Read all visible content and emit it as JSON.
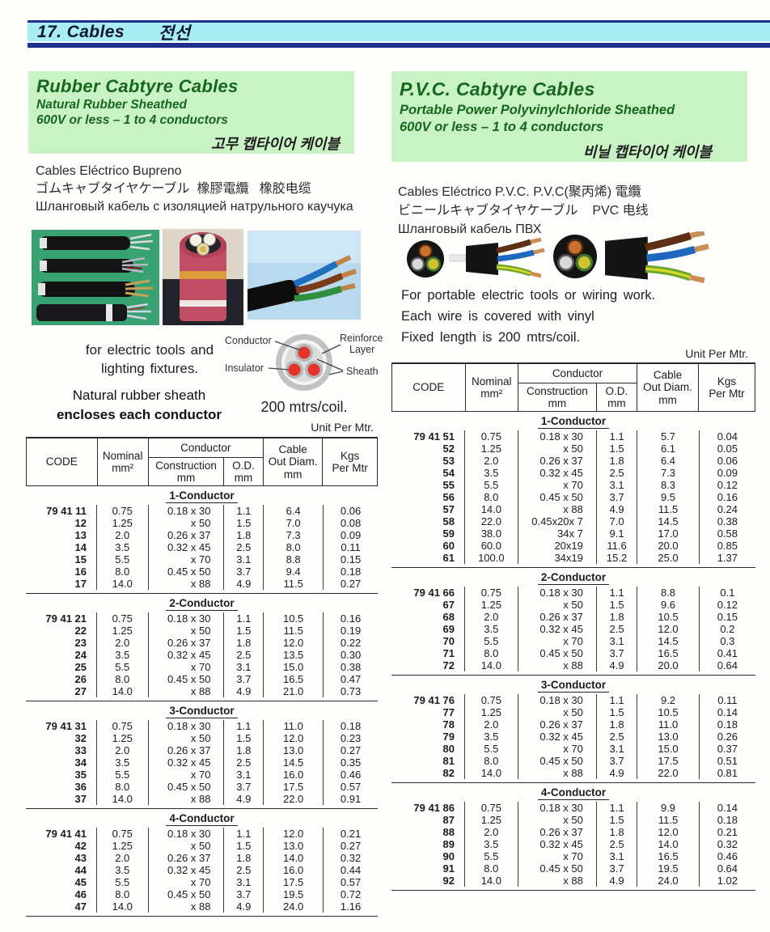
{
  "header": {
    "title_en": "17. Cables",
    "title_kr": "전선"
  },
  "colors": {
    "header_bar": "#a7edf3",
    "header_line": "#1e3090",
    "title_box_bg": "#c9f2c5",
    "title_text_green": "#17661f"
  },
  "left": {
    "title": "Rubber Cabtyre Cables",
    "subtitle1": "Natural Rubber Sheathed",
    "subtitle2": "600V or less – 1 to 4 conductors",
    "title_kr": "고무 캡타이어 케이블",
    "alt_names": [
      "Cables Eléctrico Bupreno",
      "ゴムキャブタイヤケーブル  橡膠電纜   橡胶电缆",
      "Шланговый кабель с изоляцией натрульного каучука"
    ],
    "images": [
      "rubber-cable-samples-photo",
      "rubber-cable-cross-section-photo",
      "rubber-cable-stripped-photo"
    ],
    "usage_note_line1": "for electric tools and",
    "usage_note_line2": "lighting fixtures.",
    "sheath_note_line1": "Natural rubber sheath",
    "sheath_note_line2": "encloses each conductor",
    "diagram": {
      "label_conductor": "Conductor",
      "label_insulator": "Insulator",
      "label_reinforce_line1": "Reinforce",
      "label_reinforce_line2": "Layer",
      "label_sheath": "Sheath",
      "caption": "200 mtrs/coil."
    },
    "unit_note": "Unit Per Mtr.",
    "table": {
      "headers": {
        "code": "CODE",
        "nominal": "Nominal\nmm²",
        "conductor": "Conductor",
        "construction": "Construction\nmm",
        "od": "O.D.\nmm",
        "cable_out_diam": "Cable\nOut Diam.\nmm",
        "kgs": "Kgs\nPer Mtr"
      },
      "sections": [
        {
          "name": "1-Conductor",
          "rows": [
            [
              "79 41 11",
              "0.75",
              "0.18 x 30",
              "1.1",
              "6.4",
              "0.06"
            ],
            [
              "12",
              "1.25",
              "x 50",
              "1.5",
              "7.0",
              "0.08"
            ],
            [
              "13",
              "2.0",
              "0.26 x 37",
              "1.8",
              "7.3",
              "0.09"
            ],
            [
              "14",
              "3.5",
              "0.32 x 45",
              "2.5",
              "8.0",
              "0.11"
            ],
            [
              "15",
              "5.5",
              "x 70",
              "3.1",
              "8.8",
              "0.15"
            ],
            [
              "16",
              "8.0",
              "0.45 x 50",
              "3.7",
              "9.4",
              "0.18"
            ],
            [
              "17",
              "14.0",
              "x 88",
              "4.9",
              "11.5",
              "0.27"
            ]
          ]
        },
        {
          "name": "2-Conductor",
          "rows": [
            [
              "79 41 21",
              "0.75",
              "0.18 x 30",
              "1.1",
              "10.5",
              "0.16"
            ],
            [
              "22",
              "1.25",
              "x 50",
              "1.5",
              "11.5",
              "0.19"
            ],
            [
              "23",
              "2.0",
              "0.26 x 37",
              "1.8",
              "12.0",
              "0.22"
            ],
            [
              "24",
              "3.5",
              "0.32 x 45",
              "2.5",
              "13.5",
              "0.30"
            ],
            [
              "25",
              "5.5",
              "x 70",
              "3.1",
              "15.0",
              "0.38"
            ],
            [
              "26",
              "8.0",
              "0.45 x 50",
              "3.7",
              "16.5",
              "0.47"
            ],
            [
              "27",
              "14.0",
              "x 88",
              "4.9",
              "21.0",
              "0.73"
            ]
          ]
        },
        {
          "name": "3-Conductor",
          "rows": [
            [
              "79 41 31",
              "0.75",
              "0.18 x 30",
              "1.1",
              "11.0",
              "0.18"
            ],
            [
              "32",
              "1.25",
              "x 50",
              "1.5",
              "12.0",
              "0.23"
            ],
            [
              "33",
              "2.0",
              "0.26 x 37",
              "1.8",
              "13.0",
              "0.27"
            ],
            [
              "34",
              "3.5",
              "0.32 x 45",
              "2.5",
              "14.5",
              "0.35"
            ],
            [
              "35",
              "5.5",
              "x 70",
              "3.1",
              "16.0",
              "0.46"
            ],
            [
              "36",
              "8.0",
              "0.45 x 50",
              "3.7",
              "17.5",
              "0.57"
            ],
            [
              "37",
              "14.0",
              "x 88",
              "4.9",
              "22.0",
              "0.91"
            ]
          ]
        },
        {
          "name": "4-Conductor",
          "rows": [
            [
              "79 41 41",
              "0.75",
              "0.18 x 30",
              "1.1",
              "12.0",
              "0.21"
            ],
            [
              "42",
              "1.25",
              "x 50",
              "1.5",
              "13.0",
              "0.27"
            ],
            [
              "43",
              "2.0",
              "0.26 x 37",
              "1.8",
              "14.0",
              "0.32"
            ],
            [
              "44",
              "3.5",
              "0.32 x 45",
              "2.5",
              "16.0",
              "0.44"
            ],
            [
              "45",
              "5.5",
              "x 70",
              "3.1",
              "17.5",
              "0.57"
            ],
            [
              "46",
              "8.0",
              "0.45 x 50",
              "3.7",
              "19.5",
              "0.72"
            ],
            [
              "47",
              "14.0",
              "x 88",
              "4.9",
              "24.0",
              "1.16"
            ]
          ]
        }
      ]
    }
  },
  "right": {
    "title": "P.V.C. Cabtyre Cables",
    "subtitle1": "Portable Power Polyvinylchloride Sheathed",
    "subtitle2": "600V or less – 1 to 4 conductors",
    "title_kr": "비닐 캡타이어 케이블",
    "alt_names": [
      "Cables Eléctrico P.V.C. P.V.C(聚丙烯) 電纜",
      "ビニールキャブタイヤケーブル    PVC 电线",
      "Шланговый кабель ПВХ"
    ],
    "images": [
      "pvc-cable-group-photo-small",
      "pvc-cable-group-photo-large"
    ],
    "usage_notes": [
      "For portable electric tools or wiring  work.",
      "Each  wire  is  covered  with  vinyl",
      "Fixed length is 200 mtrs/coil."
    ],
    "unit_note": "Unit Per Mtr.",
    "table": {
      "headers": {
        "code": "CODE",
        "nominal": "Nominal\nmm²",
        "conductor": "Conductor",
        "construction": "Construction\nmm",
        "od": "O.D.\nmm",
        "cable_out_diam": "Cable\nOut Diam.\nmm",
        "kgs": "Kgs\nPer Mtr"
      },
      "sections": [
        {
          "name": "1-Conductor",
          "rows": [
            [
              "79 41 51",
              "0.75",
              "0.18 x 30",
              "1.1",
              "5.7",
              "0.04"
            ],
            [
              "52",
              "1.25",
              "x 50",
              "1.5",
              "6.1",
              "0.05"
            ],
            [
              "53",
              "2.0",
              "0.26 x 37",
              "1.8",
              "6.4",
              "0.06"
            ],
            [
              "54",
              "3.5",
              "0.32 x 45",
              "2.5",
              "7.3",
              "0.09"
            ],
            [
              "55",
              "5.5",
              "x 70",
              "3.1",
              "8.3",
              "0.12"
            ],
            [
              "56",
              "8.0",
              "0.45 x 50",
              "3.7",
              "9.5",
              "0.16"
            ],
            [
              "57",
              "14.0",
              "x 88",
              "4.9",
              "11.5",
              "0.24"
            ],
            [
              "58",
              "22.0",
              "0.45x20x 7",
              "7.0",
              "14.5",
              "0.38"
            ],
            [
              "59",
              "38.0",
              "34x 7",
              "9.1",
              "17.0",
              "0.58"
            ],
            [
              "60",
              "60.0",
              "20x19",
              "11.6",
              "20.0",
              "0.85"
            ],
            [
              "61",
              "100.0",
              "34x19",
              "15.2",
              "25.0",
              "1.37"
            ]
          ]
        },
        {
          "name": "2-Conductor",
          "rows": [
            [
              "79 41 66",
              "0.75",
              "0.18 x 30",
              "1.1",
              "8.8",
              "0.1"
            ],
            [
              "67",
              "1.25",
              "x 50",
              "1.5",
              "9.6",
              "0.12"
            ],
            [
              "68",
              "2.0",
              "0.26 x 37",
              "1.8",
              "10.5",
              "0.15"
            ],
            [
              "69",
              "3.5",
              "0.32 x 45",
              "2.5",
              "12.0",
              "0.2"
            ],
            [
              "70",
              "5.5",
              "x 70",
              "3.1",
              "14.5",
              "0.3"
            ],
            [
              "71",
              "8.0",
              "0.45 x 50",
              "3.7",
              "16.5",
              "0.41"
            ],
            [
              "72",
              "14.0",
              "x 88",
              "4.9",
              "20.0",
              "0.64"
            ]
          ]
        },
        {
          "name": "3-Conductor",
          "rows": [
            [
              "79 41 76",
              "0.75",
              "0.18 x 30",
              "1.1",
              "9.2",
              "0.11"
            ],
            [
              "77",
              "1.25",
              "x 50",
              "1.5",
              "10.5",
              "0.14"
            ],
            [
              "78",
              "2.0",
              "0.26 x 37",
              "1.8",
              "11.0",
              "0.18"
            ],
            [
              "79",
              "3.5",
              "0.32 x 45",
              "2.5",
              "13.0",
              "0.26"
            ],
            [
              "80",
              "5.5",
              "x 70",
              "3.1",
              "15.0",
              "0.37"
            ],
            [
              "81",
              "8.0",
              "0.45 x 50",
              "3.7",
              "17.5",
              "0.51"
            ],
            [
              "82",
              "14.0",
              "x 88",
              "4.9",
              "22.0",
              "0.81"
            ]
          ]
        },
        {
          "name": "4-Conductor",
          "rows": [
            [
              "79 41 86",
              "0.75",
              "0.18 x 30",
              "1.1",
              "9.9",
              "0.14"
            ],
            [
              "87",
              "1.25",
              "x 50",
              "1.5",
              "11.5",
              "0.18"
            ],
            [
              "88",
              "2.0",
              "0.26 x 37",
              "1.8",
              "12.0",
              "0.21"
            ],
            [
              "89",
              "3.5",
              "0.32 x 45",
              "2.5",
              "14.0",
              "0.32"
            ],
            [
              "90",
              "5.5",
              "x 70",
              "3.1",
              "16.5",
              "0.46"
            ],
            [
              "91",
              "8.0",
              "0.45 x 50",
              "3.7",
              "19.5",
              "0.64"
            ],
            [
              "92",
              "14.0",
              "x 88",
              "4.9",
              "24.0",
              "1.02"
            ]
          ]
        }
      ]
    }
  }
}
